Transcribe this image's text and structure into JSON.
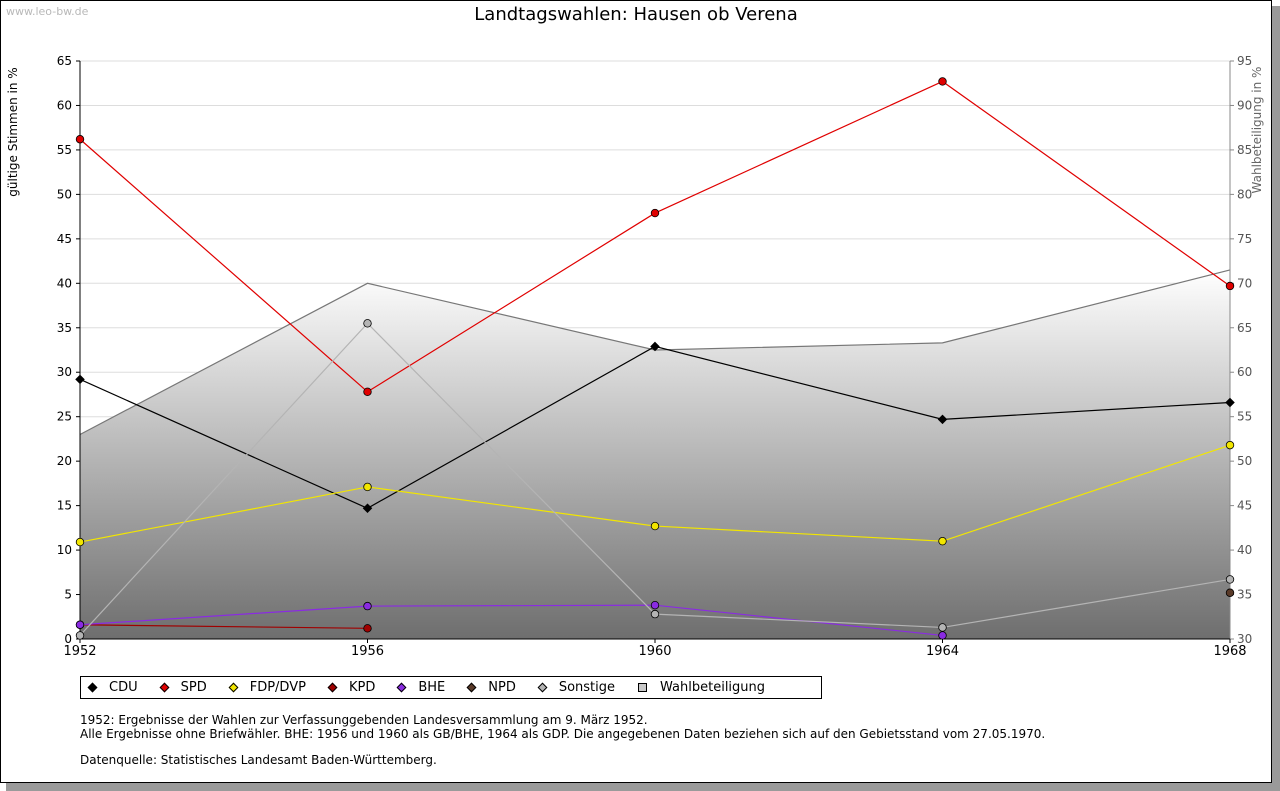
{
  "watermark": "www.leo-bw.de",
  "chart_data": {
    "type": "line",
    "title": "Landtagswahlen: Hausen ob Verena",
    "ylabel": "gültige Stimmen in %",
    "y2label": "Wahlbeteiligung in %",
    "xlabel": "",
    "x": [
      "1952",
      "1956",
      "1960",
      "1964",
      "1968"
    ],
    "ylim": [
      0,
      65
    ],
    "y2lim": [
      30,
      95
    ],
    "yticks": [
      "0",
      "5",
      "10",
      "15",
      "20",
      "25",
      "30",
      "35",
      "40",
      "45",
      "50",
      "55",
      "60",
      "65"
    ],
    "y2ticks": [
      "30",
      "35",
      "40",
      "45",
      "50",
      "55",
      "60",
      "65",
      "70",
      "75",
      "80",
      "85",
      "90",
      "95"
    ],
    "turnout": {
      "name": "Wahlbeteiligung",
      "values": [
        53,
        70,
        62.5,
        63.3,
        71.5
      ]
    },
    "series": [
      {
        "name": "CDU",
        "color": "#000000",
        "values": [
          29.2,
          14.7,
          32.9,
          24.7,
          26.6
        ]
      },
      {
        "name": "SPD",
        "color": "#e00000",
        "values": [
          56.2,
          27.8,
          47.9,
          62.7,
          39.7
        ]
      },
      {
        "name": "FDP/DVP",
        "color": "#f2e600",
        "values": [
          10.9,
          17.1,
          12.7,
          11.0,
          21.8
        ]
      },
      {
        "name": "KPD",
        "color": "#a00000",
        "values": [
          1.6,
          1.2,
          null,
          null,
          null
        ]
      },
      {
        "name": "BHE",
        "color": "#8a2be2",
        "values": [
          1.6,
          3.7,
          3.8,
          0.4,
          null
        ]
      },
      {
        "name": "NPD",
        "color": "#5a3a28",
        "values": [
          null,
          null,
          null,
          null,
          5.2
        ]
      },
      {
        "name": "Sonstige",
        "color": "#b4b4b4",
        "values": [
          0.4,
          35.5,
          2.8,
          1.3,
          6.7
        ]
      }
    ]
  },
  "legend": [
    {
      "label": "CDU",
      "color": "#000000"
    },
    {
      "label": "SPD",
      "color": "#e00000"
    },
    {
      "label": "FDP/DVP",
      "color": "#f2e600"
    },
    {
      "label": "KPD",
      "color": "#a00000"
    },
    {
      "label": "BHE",
      "color": "#8a2be2"
    },
    {
      "label": "NPD",
      "color": "#5a3a28"
    },
    {
      "label": "Sonstige",
      "color": "#b4b4b4"
    },
    {
      "label": "Wahlbeteiligung",
      "color": "#c8c8c8"
    }
  ],
  "notes": {
    "line1": "1952: Ergebnisse der Wahlen zur Verfassunggebenden Landesversammlung am 9. März 1952.",
    "line2": "Alle Ergebnisse ohne Briefwähler. BHE: 1956 und 1960 als GB/BHE, 1964 als GDP. Die angegebenen Daten beziehen sich auf den Gebietsstand vom 27.05.1970.",
    "source": "Datenquelle: Statistisches Landesamt Baden-Württemberg."
  }
}
